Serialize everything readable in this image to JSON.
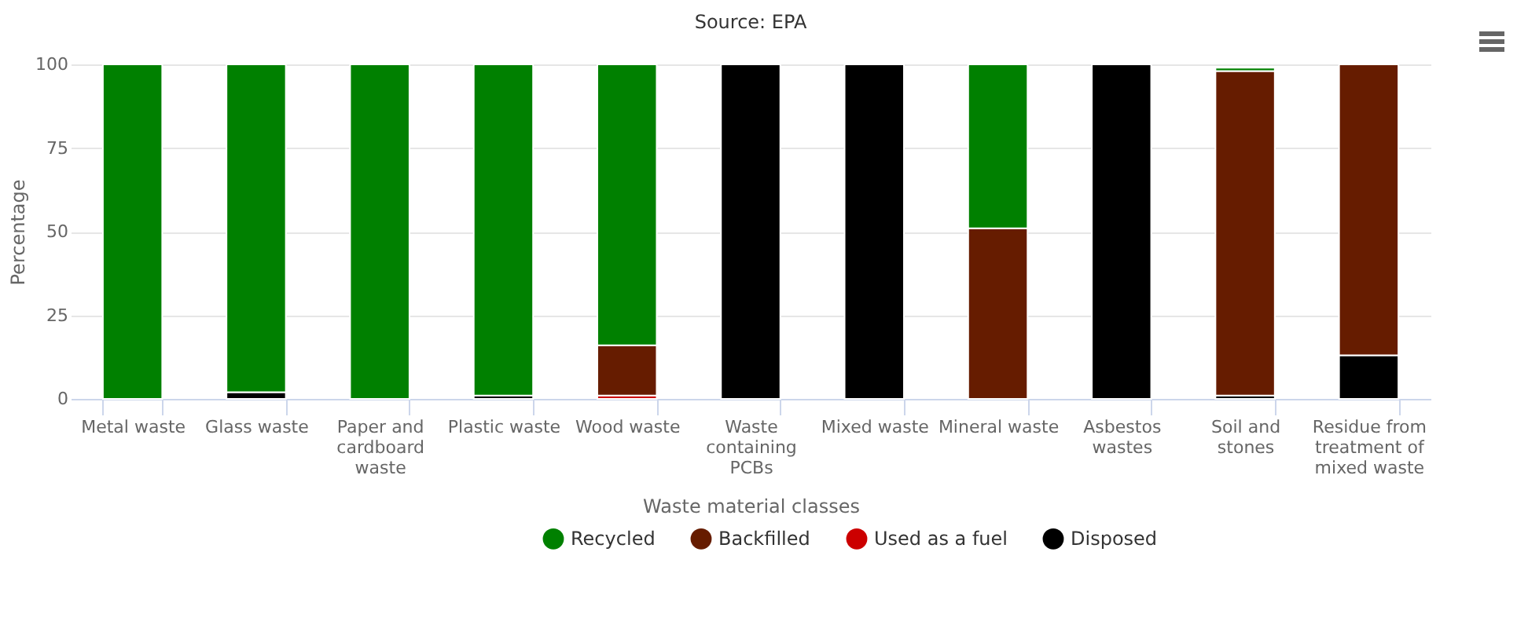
{
  "chart_data": {
    "type": "bar",
    "title": "Source: EPA",
    "xlabel": "Waste material classes",
    "ylabel": "Percentage",
    "categories": [
      "Metal waste",
      "Glass waste",
      "Paper and cardboard waste",
      "Plastic waste",
      "Wood waste",
      "Waste containing PCBs",
      "Mixed waste",
      "Mineral waste",
      "Asbestos wastes",
      "Soil and stones",
      "Residue from treatment of mixed waste"
    ],
    "stacked": true,
    "series": [
      {
        "name": "Disposed",
        "color": "#000000",
        "values": [
          0,
          2,
          0,
          1,
          0,
          100,
          100,
          0,
          100,
          1,
          13
        ]
      },
      {
        "name": "Used as a fuel",
        "color": "#cc0000",
        "values": [
          0,
          0,
          0,
          0,
          1,
          0,
          0,
          0,
          0,
          0,
          0
        ]
      },
      {
        "name": "Backfilled",
        "color": "#661c00",
        "values": [
          0,
          0,
          0,
          0,
          15,
          0,
          0,
          51,
          0,
          97,
          87
        ]
      },
      {
        "name": "Recycled",
        "color": "#008000",
        "values": [
          100,
          98,
          100,
          99,
          84,
          0,
          0,
          49,
          0,
          1,
          0
        ]
      }
    ],
    "ylim": [
      0,
      100
    ],
    "yticks": [
      0,
      25,
      50,
      75,
      100
    ],
    "grid": "y",
    "legend": "bottom"
  }
}
